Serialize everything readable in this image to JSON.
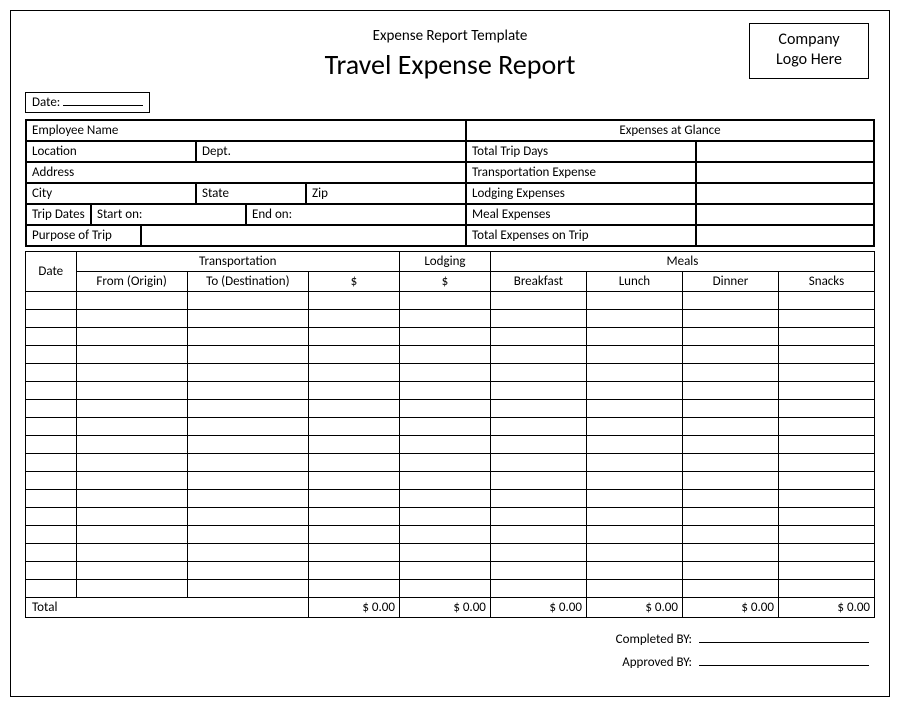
{
  "header": {
    "subtitle": "Expense Report Template",
    "title": "Travel Expense Report",
    "logo_line1": "Company",
    "logo_line2": "Logo Here",
    "date_label": "Date:"
  },
  "info": {
    "employee_name": "Employee Name",
    "expenses_glance": "Expenses at Glance",
    "location": "Location",
    "dept": "Dept.",
    "total_trip_days": "Total Trip Days",
    "address": "Address",
    "transportation_expense": "Transportation Expense",
    "city": "City",
    "state": "State",
    "zip": "Zip",
    "lodging_expenses": "Lodging Expenses",
    "trip_dates": "Trip Dates",
    "start_on": "Start on:",
    "end_on": "End on:",
    "meal_expenses": "Meal Expenses",
    "purpose": "Purpose of Trip",
    "total_on_trip": "Total Expenses on Trip"
  },
  "table": {
    "date": "Date",
    "transportation": "Transportation",
    "lodging": "Lodging",
    "meals": "Meals",
    "from_origin": "From (Origin)",
    "to_destination": "To (Destination)",
    "dollar": "$",
    "breakfast": "Breakfast",
    "lunch": "Lunch",
    "dinner": "Dinner",
    "snacks": "Snacks",
    "total": "Total",
    "zero": "$ 0.00",
    "blank_rows": 17
  },
  "signatures": {
    "completed_by": "Completed BY:",
    "approved_by": "Approved BY:"
  },
  "style": {
    "border_color": "#000000",
    "background": "#ffffff",
    "text_color": "#000000",
    "title_fontsize": 28,
    "subtitle_fontsize": 15,
    "body_fontsize": 13
  }
}
